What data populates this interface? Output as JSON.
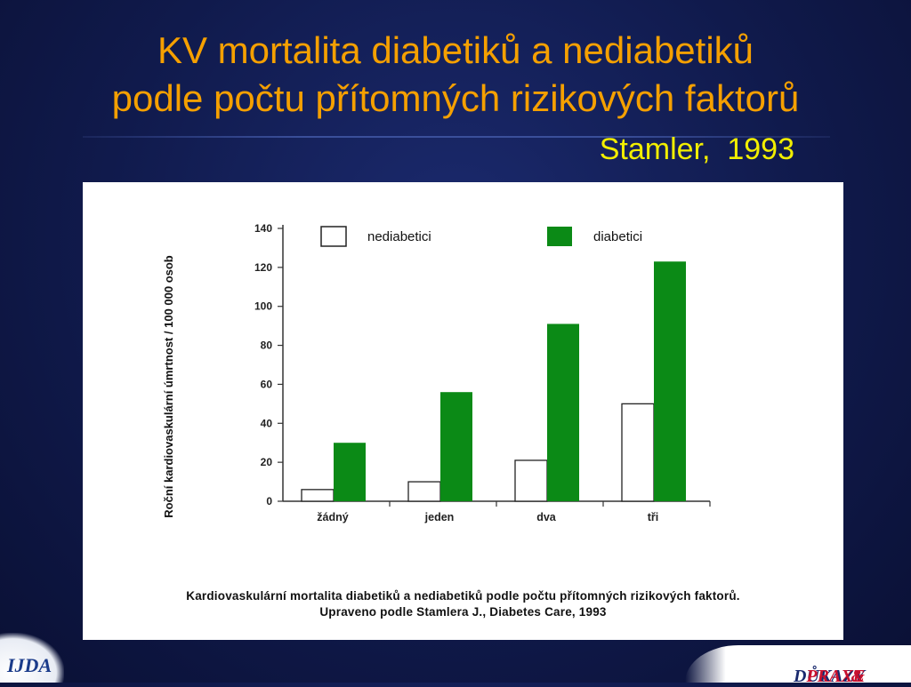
{
  "slide": {
    "title_line1": "KV mortalita diabetiků a nediabetiků",
    "title_line2": "podle počtu přítomných rizikových faktorů",
    "citation": "Stamler,  1993",
    "caption_line1": "Kardiovaskulární mortalita diabetiků a nediabetiků podle počtu přítomných rizikových faktorů.",
    "caption_line2": "Upraveno podle Stamlera J., Diabetes Care, 1993",
    "logo_left": "IJDA",
    "logo_right_part1": "DŮKAZY",
    "logo_right_amp": "&",
    "logo_right_part2": "PRAXE"
  },
  "colors": {
    "background": "#101a4c",
    "title": "#f5a000",
    "citation": "#f2ee00",
    "diabetic_bar": "#0b8a16",
    "nondiabetic_bar": "#ffffff"
  },
  "chart_data": {
    "type": "bar",
    "categories": [
      "žádný",
      "jeden",
      "dva",
      "tři"
    ],
    "series": [
      {
        "name": "nediabetici",
        "values": [
          6,
          10,
          21,
          50
        ],
        "color": "#ffffff"
      },
      {
        "name": "diabetici",
        "values": [
          30,
          56,
          91,
          123
        ],
        "color": "#0b8a16"
      }
    ],
    "ylabel": "Roční kardiovaskulární úmrtnost / 100 000 osob",
    "ylim": [
      0,
      140
    ],
    "yticks": [
      0,
      20,
      40,
      60,
      80,
      100,
      120,
      140
    ],
    "grid": false,
    "legend": "top"
  }
}
